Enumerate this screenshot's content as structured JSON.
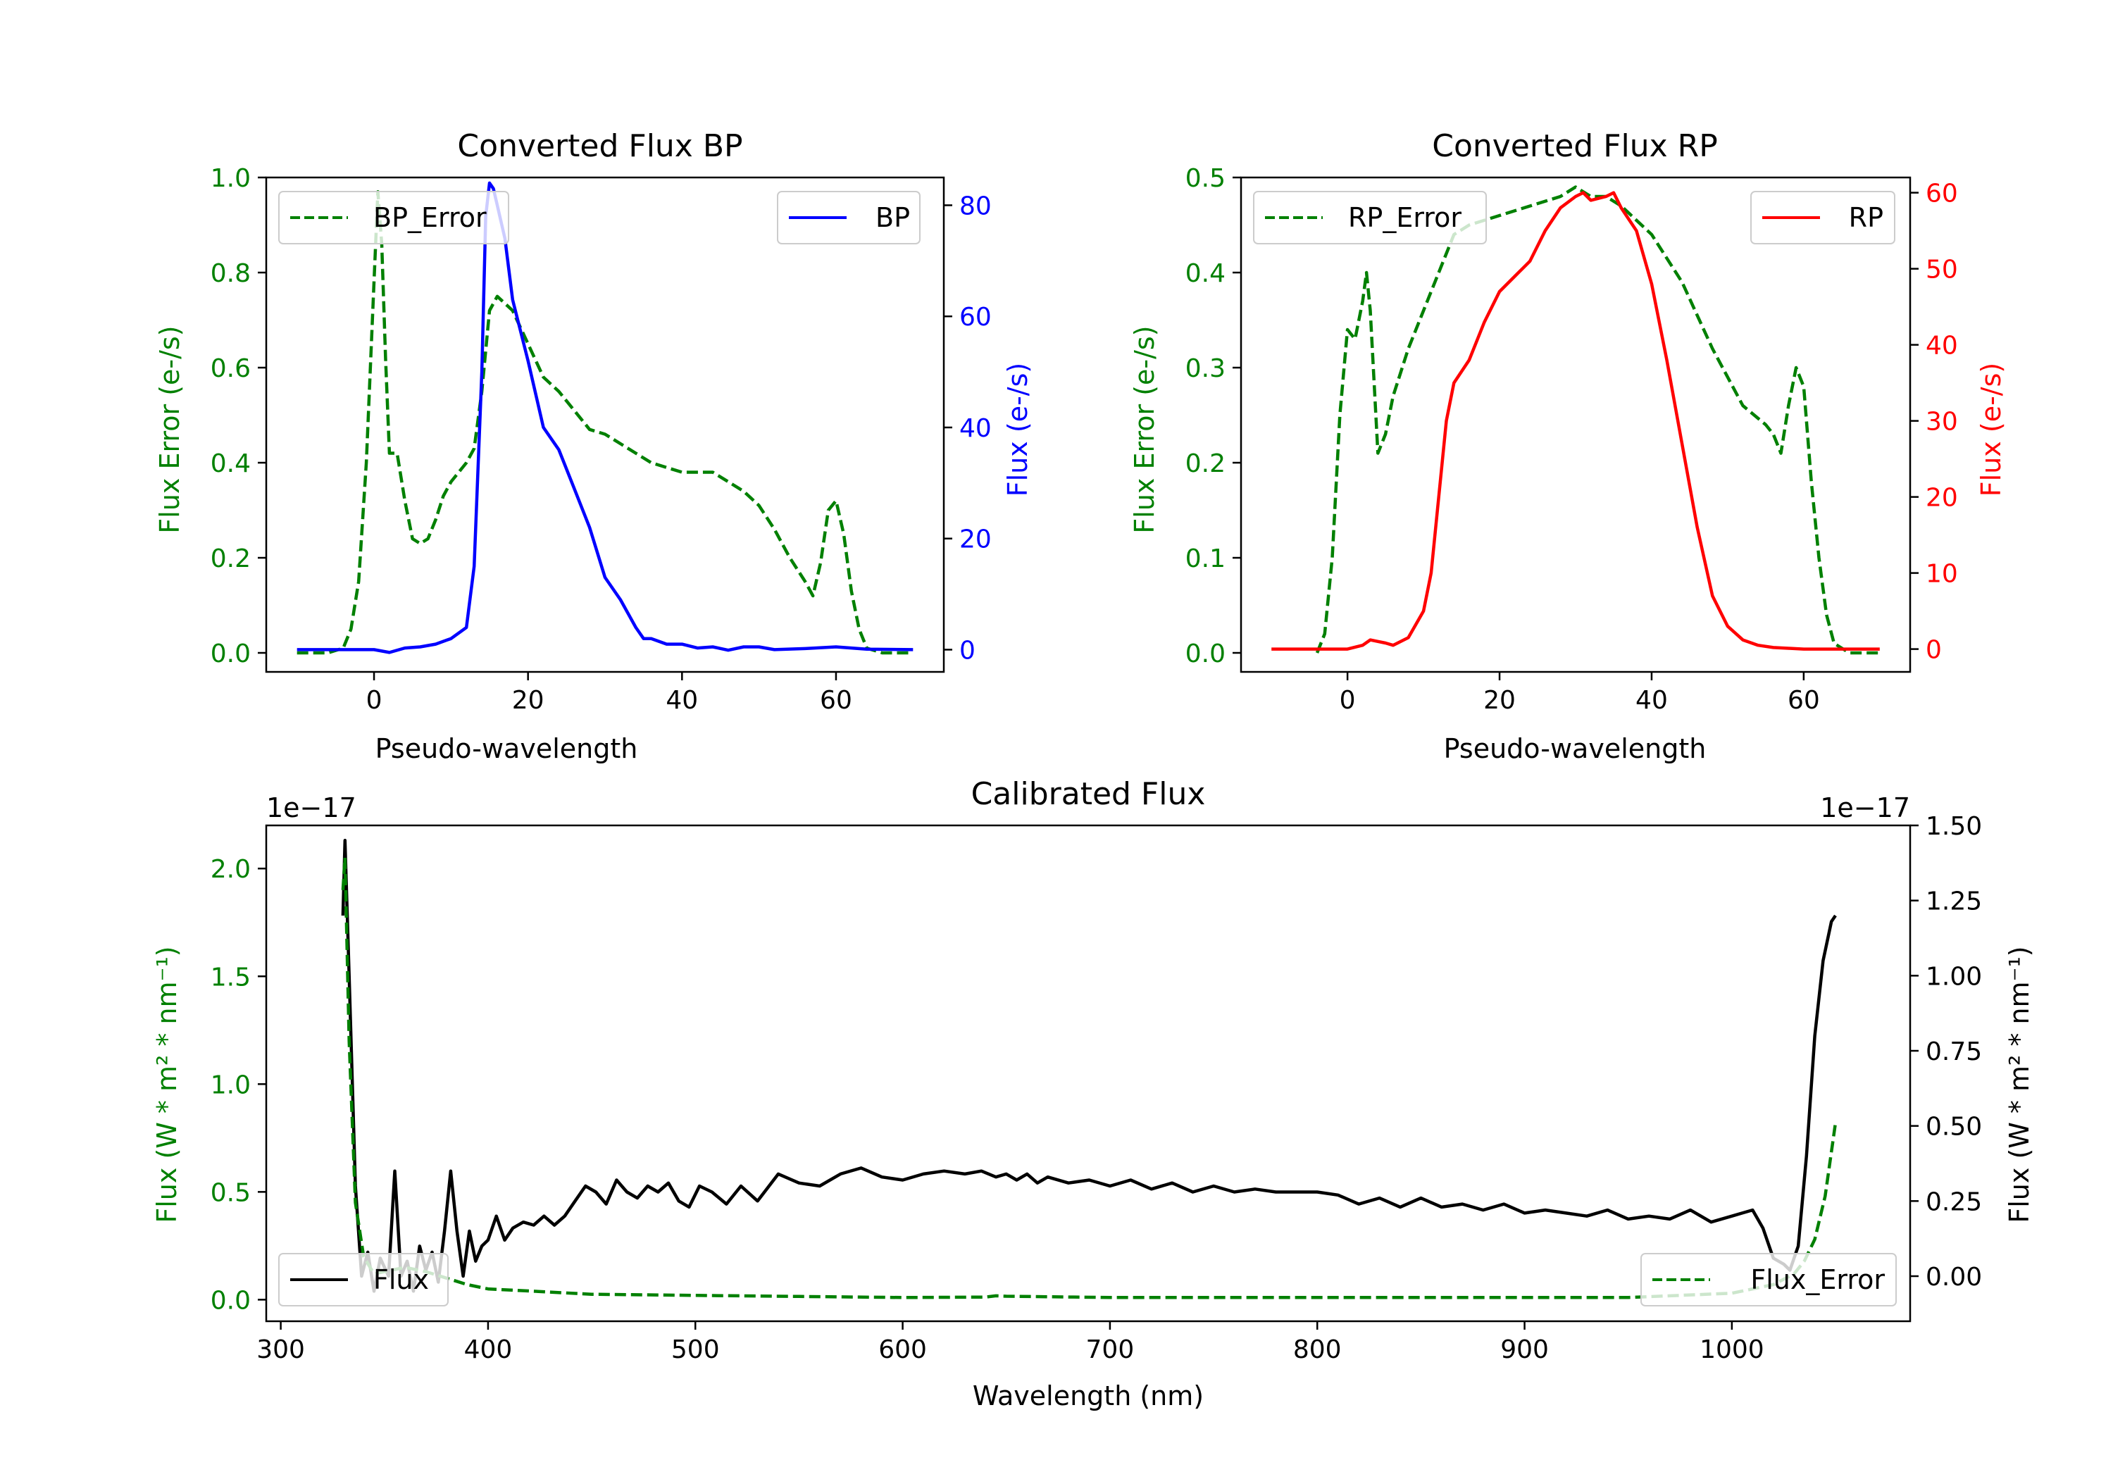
{
  "figure": {
    "colors": {
      "green": "#008000",
      "blue": "#0000ff",
      "red": "#ff0000",
      "black": "#000000"
    }
  },
  "chart_data": [
    {
      "id": "bp",
      "type": "line",
      "title": "Converted Flux BP",
      "xlabel": "Pseudo-wavelength",
      "ylabel_left": "Flux Error (e-/s)",
      "ylabel_right": "Flux (e-/s)",
      "xlim": [
        -14,
        74
      ],
      "xticks": [
        0,
        20,
        40,
        60
      ],
      "ylim_left": [
        -0.04,
        1.0
      ],
      "yticks_left": [
        0.0,
        0.2,
        0.4,
        0.6,
        0.8,
        1.0
      ],
      "ylim_right": [
        -4,
        85
      ],
      "yticks_right": [
        0,
        20,
        40,
        60,
        80
      ],
      "series": [
        {
          "name": "BP_Error",
          "legend": "BP_Error",
          "axis": "left",
          "style": "dashed",
          "color": "#008000",
          "x": [
            -10,
            -6,
            -4,
            -3,
            -2,
            -1,
            0,
            0.5,
            1,
            1.5,
            2,
            3,
            4,
            5,
            6,
            7,
            8,
            9,
            10,
            11,
            12,
            13,
            14,
            15,
            16,
            18,
            20,
            22,
            24,
            26,
            28,
            30,
            32,
            34,
            36,
            38,
            40,
            42,
            44,
            46,
            48,
            50,
            52,
            54,
            56,
            57,
            58,
            59,
            60,
            61,
            62,
            63,
            64,
            66,
            68,
            70
          ],
          "y": [
            0.0,
            0.0,
            0.01,
            0.05,
            0.15,
            0.4,
            0.78,
            0.97,
            0.86,
            0.62,
            0.42,
            0.42,
            0.32,
            0.24,
            0.23,
            0.24,
            0.28,
            0.33,
            0.36,
            0.38,
            0.4,
            0.43,
            0.55,
            0.72,
            0.75,
            0.72,
            0.65,
            0.58,
            0.55,
            0.51,
            0.47,
            0.46,
            0.44,
            0.42,
            0.4,
            0.39,
            0.38,
            0.38,
            0.38,
            0.36,
            0.34,
            0.31,
            0.26,
            0.2,
            0.15,
            0.12,
            0.19,
            0.3,
            0.32,
            0.25,
            0.13,
            0.05,
            0.01,
            0.0,
            0.0,
            0.0
          ]
        },
        {
          "name": "BP",
          "legend": "BP",
          "axis": "right",
          "style": "solid",
          "color": "#0000ff",
          "x": [
            -10,
            -6,
            -2,
            0,
            2,
            4,
            6,
            8,
            10,
            12,
            13,
            14,
            14.5,
            15,
            15.5,
            16,
            17,
            18,
            20,
            22,
            24,
            26,
            28,
            30,
            32,
            34,
            35,
            36,
            38,
            40,
            42,
            44,
            46,
            48,
            50,
            52,
            56,
            60,
            64,
            70
          ],
          "y": [
            0.0,
            0.0,
            0.0,
            0.0,
            -0.5,
            0.3,
            0.5,
            1.0,
            2.0,
            4.0,
            15.0,
            50.0,
            78.0,
            84.0,
            83.0,
            80.0,
            74.0,
            63.0,
            52.0,
            40.0,
            36.0,
            29.0,
            22.0,
            13.0,
            9.0,
            4.0,
            2.0,
            2.0,
            1.0,
            1.0,
            0.3,
            0.5,
            -0.1,
            0.5,
            0.5,
            0.0,
            0.2,
            0.5,
            0.1,
            0.0
          ]
        }
      ],
      "legend_left": "upper left",
      "legend_right": "upper right"
    },
    {
      "id": "rp",
      "type": "line",
      "title": "Converted Flux RP",
      "xlabel": "Pseudo-wavelength",
      "ylabel_left": "Flux Error (e-/s)",
      "ylabel_right": "Flux (e-/s)",
      "xlim": [
        -14,
        74
      ],
      "xticks": [
        0,
        20,
        40,
        60
      ],
      "ylim_left": [
        -0.02,
        0.5
      ],
      "yticks_left": [
        0.0,
        0.1,
        0.2,
        0.3,
        0.4,
        0.5
      ],
      "ylim_right": [
        -3,
        62
      ],
      "yticks_right": [
        0,
        10,
        20,
        30,
        40,
        50,
        60
      ],
      "series": [
        {
          "name": "RP_Error",
          "legend": "RP_Error",
          "axis": "left",
          "style": "dashed",
          "color": "#008000",
          "x": [
            -4,
            -3,
            -2,
            -1,
            0,
            1,
            2,
            2.5,
            3,
            4,
            5,
            6,
            8,
            10,
            12,
            14,
            16,
            20,
            24,
            28,
            30,
            32,
            34,
            36,
            40,
            44,
            48,
            52,
            55,
            56,
            57,
            58,
            59,
            60,
            61,
            62,
            63,
            64,
            66,
            70
          ],
          "y": [
            0.0,
            0.02,
            0.1,
            0.25,
            0.34,
            0.33,
            0.37,
            0.4,
            0.36,
            0.21,
            0.23,
            0.27,
            0.32,
            0.36,
            0.4,
            0.44,
            0.45,
            0.46,
            0.47,
            0.48,
            0.49,
            0.48,
            0.48,
            0.47,
            0.44,
            0.39,
            0.32,
            0.26,
            0.24,
            0.23,
            0.21,
            0.26,
            0.3,
            0.28,
            0.18,
            0.1,
            0.04,
            0.01,
            0.0,
            0.0
          ]
        },
        {
          "name": "RP",
          "legend": "RP",
          "axis": "right",
          "style": "solid",
          "color": "#ff0000",
          "x": [
            -10,
            -4,
            0,
            2,
            3,
            4,
            5,
            6,
            8,
            10,
            11,
            12,
            13,
            14,
            16,
            18,
            20,
            22,
            24,
            26,
            28,
            30,
            31,
            32,
            34,
            35,
            36,
            38,
            40,
            42,
            44,
            46,
            48,
            50,
            52,
            54,
            56,
            58,
            60,
            64,
            70
          ],
          "y": [
            0.0,
            0.0,
            0.0,
            0.5,
            1.2,
            1.0,
            0.8,
            0.5,
            1.5,
            5.0,
            10.0,
            20.0,
            30.0,
            35.0,
            38.0,
            43.0,
            47.0,
            49.0,
            51.0,
            55.0,
            58.0,
            59.5,
            60.0,
            59.0,
            59.5,
            60.0,
            58.0,
            55.0,
            48.0,
            38.0,
            27.0,
            16.0,
            7.0,
            3.0,
            1.2,
            0.5,
            0.2,
            0.1,
            0.0,
            0.0,
            0.0
          ]
        }
      ],
      "legend_left": "upper left",
      "legend_right": "upper right"
    },
    {
      "id": "cal",
      "type": "line",
      "title": "Calibrated Flux",
      "xlabel": "Wavelength (nm)",
      "ylabel_left": "Flux (W * m² * nm⁻¹)",
      "ylabel_right": "Flux (W * m² * nm⁻¹)",
      "offset_left": "1e−17",
      "offset_right": "1e−17",
      "xlim": [
        293,
        1086
      ],
      "xticks": [
        300,
        400,
        500,
        600,
        700,
        800,
        900,
        1000
      ],
      "ylim_left": [
        -0.1,
        2.2
      ],
      "yticks_left": [
        0.0,
        0.5,
        1.0,
        1.5,
        2.0
      ],
      "ylim_right": [
        -0.15,
        1.5
      ],
      "yticks_right": [
        0.0,
        0.25,
        0.5,
        0.75,
        1.0,
        1.25,
        1.5
      ],
      "series": [
        {
          "name": "Flux",
          "legend": "Flux",
          "axis": "right",
          "style": "solid",
          "color": "#000000",
          "x": [
            330,
            331,
            333,
            336,
            339,
            342,
            345,
            348,
            352,
            355,
            358,
            361,
            364,
            367,
            370,
            373,
            376,
            379,
            382,
            385,
            388,
            391,
            394,
            397,
            400,
            404,
            408,
            412,
            417,
            422,
            427,
            432,
            437,
            442,
            447,
            452,
            457,
            462,
            467,
            472,
            477,
            482,
            487,
            492,
            497,
            502,
            508,
            515,
            522,
            530,
            540,
            550,
            560,
            570,
            580,
            590,
            600,
            610,
            620,
            630,
            638,
            645,
            650,
            655,
            660,
            665,
            670,
            680,
            690,
            700,
            710,
            720,
            730,
            740,
            750,
            760,
            770,
            780,
            790,
            800,
            810,
            820,
            830,
            840,
            850,
            860,
            870,
            880,
            890,
            900,
            910,
            920,
            930,
            940,
            950,
            960,
            970,
            980,
            990,
            1000,
            1005,
            1010,
            1015,
            1020,
            1025,
            1028,
            1032,
            1036,
            1040,
            1044,
            1048,
            1050
          ],
          "y": [
            1.2,
            1.45,
            1.0,
            0.3,
            0.0,
            0.08,
            -0.05,
            0.06,
            0.0,
            0.35,
            0.0,
            0.05,
            -0.05,
            0.1,
            0.02,
            0.08,
            -0.02,
            0.15,
            0.35,
            0.15,
            0.0,
            0.15,
            0.05,
            0.1,
            0.12,
            0.2,
            0.12,
            0.16,
            0.18,
            0.17,
            0.2,
            0.17,
            0.2,
            0.25,
            0.3,
            0.28,
            0.24,
            0.32,
            0.28,
            0.26,
            0.3,
            0.28,
            0.31,
            0.25,
            0.23,
            0.3,
            0.28,
            0.24,
            0.3,
            0.25,
            0.34,
            0.31,
            0.3,
            0.34,
            0.36,
            0.33,
            0.32,
            0.34,
            0.35,
            0.34,
            0.35,
            0.33,
            0.34,
            0.32,
            0.34,
            0.31,
            0.33,
            0.31,
            0.32,
            0.3,
            0.32,
            0.29,
            0.31,
            0.28,
            0.3,
            0.28,
            0.29,
            0.28,
            0.28,
            0.28,
            0.27,
            0.24,
            0.26,
            0.23,
            0.26,
            0.23,
            0.24,
            0.22,
            0.24,
            0.21,
            0.22,
            0.21,
            0.2,
            0.22,
            0.19,
            0.2,
            0.19,
            0.22,
            0.18,
            0.2,
            0.21,
            0.22,
            0.16,
            0.06,
            0.04,
            0.02,
            0.1,
            0.4,
            0.8,
            1.05,
            1.18,
            1.2
          ]
        },
        {
          "name": "Flux_Error",
          "legend": "Flux_Error",
          "axis": "left",
          "style": "dashed",
          "color": "#008000",
          "x": [
            330,
            331,
            333,
            336,
            340,
            345,
            350,
            360,
            370,
            380,
            390,
            400,
            420,
            450,
            500,
            550,
            600,
            640,
            645,
            650,
            700,
            750,
            800,
            850,
            900,
            950,
            1000,
            1020,
            1030,
            1035,
            1040,
            1045,
            1050
          ],
          "y": [
            1.9,
            2.05,
            1.2,
            0.45,
            0.2,
            0.12,
            0.13,
            0.15,
            0.13,
            0.1,
            0.07,
            0.05,
            0.04,
            0.025,
            0.02,
            0.015,
            0.01,
            0.012,
            0.018,
            0.016,
            0.01,
            0.01,
            0.01,
            0.01,
            0.01,
            0.01,
            0.03,
            0.07,
            0.12,
            0.18,
            0.28,
            0.48,
            0.82
          ]
        }
      ],
      "legend_left": "lower left",
      "legend_right": "lower right"
    }
  ]
}
